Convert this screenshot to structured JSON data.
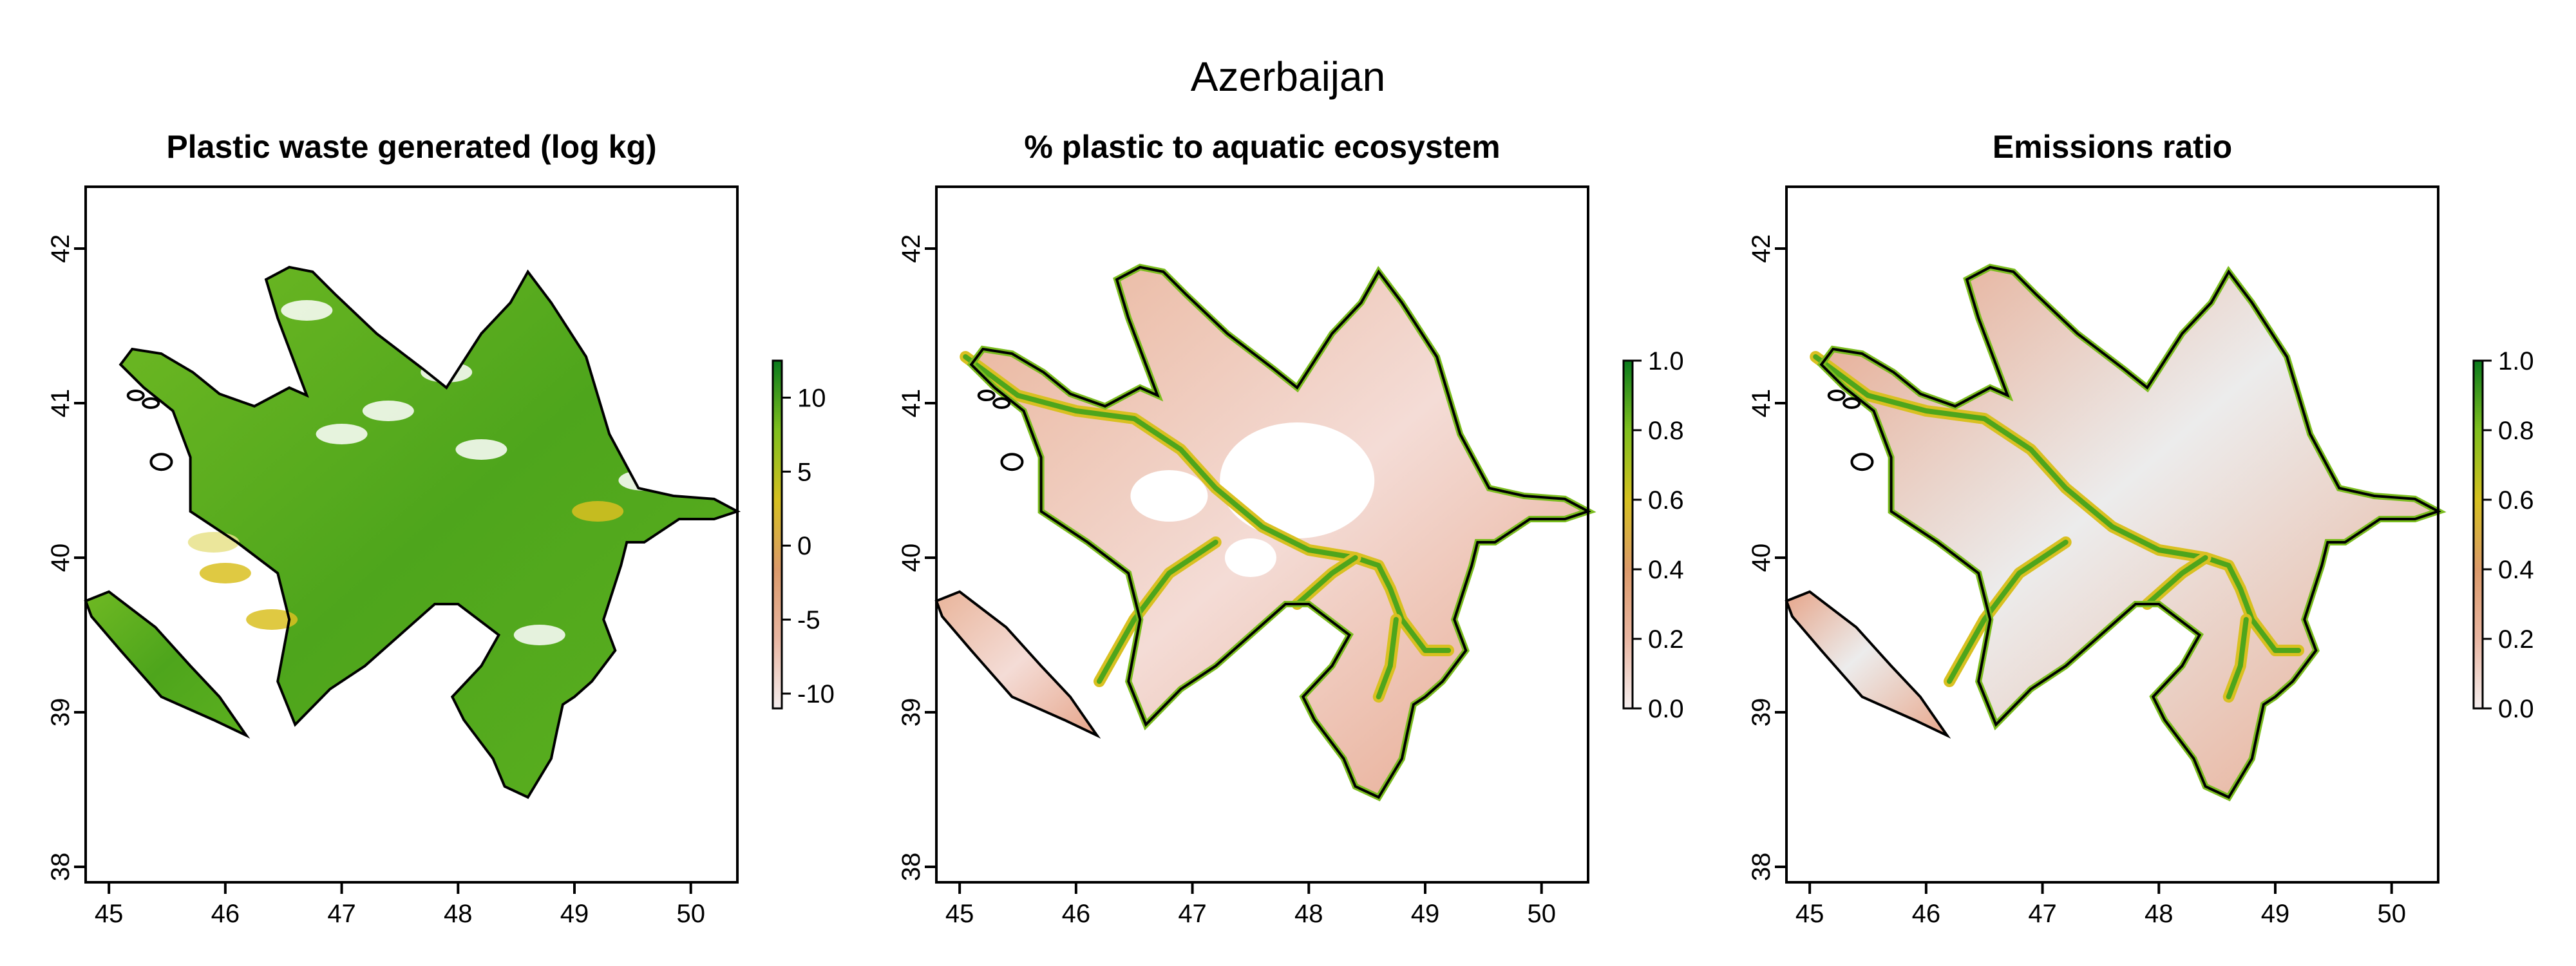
{
  "title": "Azerbaijan",
  "colors": {
    "low": "#f2e4e4",
    "mid_low": "#e7a98a",
    "mid": "#d9c021",
    "mid_high": "#7bbd1f",
    "high": "#0b7a1e",
    "na_grey": "#e8e8e8",
    "outline": "#000000"
  },
  "chart_data": [
    {
      "type": "heatmap",
      "title": "Plastic waste generated (log kg)",
      "xlabel": "",
      "ylabel": "",
      "xlim": [
        44.8,
        50.4
      ],
      "ylim": [
        37.9,
        42.4
      ],
      "xticks": [
        45,
        46,
        47,
        48,
        49,
        50
      ],
      "yticks": [
        38,
        39,
        40,
        41,
        42
      ],
      "colorbar": {
        "min": -11,
        "max": 12.5,
        "ticks": [
          10,
          5,
          0,
          -5,
          -10
        ],
        "tick_values": [
          10,
          5,
          0,
          -5,
          -10
        ]
      },
      "fill": "mostly-high"
    },
    {
      "type": "heatmap",
      "title": "% plastic to aquatic ecosystem",
      "xlabel": "",
      "ylabel": "",
      "xlim": [
        44.8,
        50.4
      ],
      "ylim": [
        37.9,
        42.4
      ],
      "xticks": [
        45,
        46,
        47,
        48,
        49,
        50
      ],
      "yticks": [
        38,
        39,
        40,
        41,
        42
      ],
      "colorbar": {
        "min": 0,
        "max": 1,
        "ticks": [
          "1.0",
          "0.8",
          "0.6",
          "0.4",
          "0.2",
          "0.0"
        ],
        "tick_values": [
          1.0,
          0.8,
          0.6,
          0.4,
          0.2,
          0.0
        ]
      },
      "fill": "river-gradient"
    },
    {
      "type": "heatmap",
      "title": "Emissions ratio",
      "xlabel": "",
      "ylabel": "",
      "xlim": [
        44.8,
        50.4
      ],
      "ylim": [
        37.9,
        42.4
      ],
      "xticks": [
        45,
        46,
        47,
        48,
        49,
        50
      ],
      "yticks": [
        38,
        39,
        40,
        41,
        42
      ],
      "colorbar": {
        "min": 0,
        "max": 1,
        "ticks": [
          "1.0",
          "0.8",
          "0.6",
          "0.4",
          "0.2",
          "0.0"
        ],
        "tick_values": [
          1.0,
          0.8,
          0.6,
          0.4,
          0.2,
          0.0
        ]
      },
      "fill": "river-gradient-grey"
    }
  ]
}
